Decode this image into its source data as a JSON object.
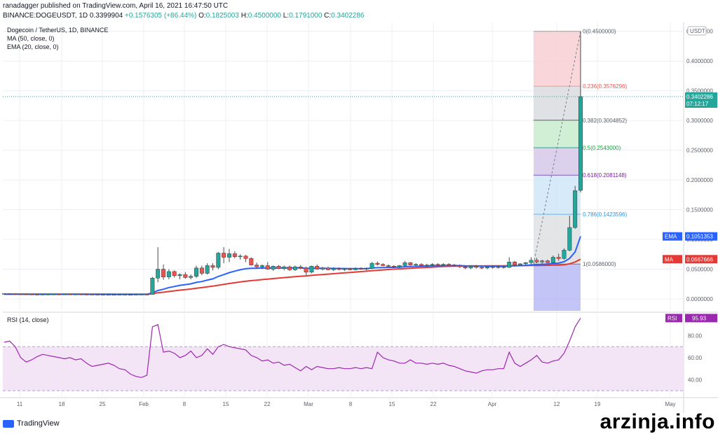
{
  "header": {
    "line1": "ranadagger published on TradingView.com, April 16, 2021 16:47:50 UTC",
    "symbol": "BINANCE:DOGEUSDT, 1D",
    "last": "0.3399904",
    "change": "+0.1576305 (+86.44%)",
    "o_label": "O:",
    "o": "0.1825003",
    "h_label": "H:",
    "h": "0.4500000",
    "l_label": "L:",
    "l": "0.1791000",
    "c_label": "C:",
    "c": "0.3402286"
  },
  "legend": {
    "title": "Dogecoin / TetherUS, 1D, BINANCE",
    "ma": "MA (50, close, 0)",
    "ema": "EMA (20, close, 0)",
    "rsi": "RSI (14, close)"
  },
  "colors": {
    "up": "#26a69a",
    "down": "#ef5350",
    "ema": "#2962ff",
    "ma": "#e53935",
    "rsi": "#9c27b0",
    "rsi_band": "#f3e5f5",
    "axis_text": "#5d606b",
    "grid": "#eceff3"
  },
  "chart_data": [
    {
      "type": "candlestick",
      "title": "Dogecoin / TetherUS, 1D, BINANCE",
      "ylabel": "USDT",
      "ylim": [
        -0.02,
        0.465
      ],
      "y_ticks": [
        "0.4500000",
        "0.4000000",
        "0.3500000",
        "0.3000000",
        "0.2500000",
        "0.2000000",
        "0.1500000",
        "0.1000000",
        "0.0500000",
        "0.0000000"
      ],
      "x_ticks": [
        "11",
        "18",
        "25",
        "Feb",
        "8",
        "15",
        "22",
        "Mar",
        "8",
        "15",
        "22",
        "Apr",
        "12",
        "19",
        "May"
      ],
      "candles": [
        [
          0.0085,
          0.0092,
          0.008,
          0.0089
        ],
        [
          0.0089,
          0.0095,
          0.0082,
          0.0087
        ],
        [
          0.0087,
          0.009,
          0.0079,
          0.0084
        ],
        [
          0.0084,
          0.0088,
          0.0078,
          0.0082
        ],
        [
          0.0082,
          0.0086,
          0.0077,
          0.008
        ],
        [
          0.008,
          0.0083,
          0.0075,
          0.0077
        ],
        [
          0.0077,
          0.0081,
          0.0074,
          0.0076
        ],
        [
          0.0076,
          0.008,
          0.0073,
          0.0078
        ],
        [
          0.0078,
          0.0082,
          0.0075,
          0.0079
        ],
        [
          0.0079,
          0.0083,
          0.0076,
          0.008
        ],
        [
          0.008,
          0.0084,
          0.0077,
          0.0078
        ],
        [
          0.0078,
          0.0082,
          0.0076,
          0.0081
        ],
        [
          0.0081,
          0.0085,
          0.0078,
          0.0079
        ],
        [
          0.0079,
          0.0083,
          0.0076,
          0.008
        ],
        [
          0.008,
          0.0083,
          0.0077,
          0.0078
        ],
        [
          0.0078,
          0.0081,
          0.0075,
          0.0077
        ],
        [
          0.0077,
          0.008,
          0.0074,
          0.0076
        ],
        [
          0.0076,
          0.0079,
          0.0073,
          0.0075
        ],
        [
          0.0075,
          0.0078,
          0.0072,
          0.0074
        ],
        [
          0.0074,
          0.0077,
          0.0071,
          0.0073
        ],
        [
          0.0073,
          0.0076,
          0.007,
          0.0074
        ],
        [
          0.0074,
          0.0077,
          0.0071,
          0.0075
        ],
        [
          0.0075,
          0.0078,
          0.0072,
          0.0073
        ],
        [
          0.0073,
          0.0076,
          0.007,
          0.0074
        ],
        [
          0.0074,
          0.0078,
          0.0072,
          0.0076
        ],
        [
          0.0076,
          0.008,
          0.0073,
          0.0077
        ],
        [
          0.0077,
          0.0081,
          0.0074,
          0.0075
        ],
        [
          0.0075,
          0.037,
          0.0072,
          0.035
        ],
        [
          0.035,
          0.087,
          0.028,
          0.05
        ],
        [
          0.05,
          0.058,
          0.032,
          0.037
        ],
        [
          0.037,
          0.05,
          0.033,
          0.046
        ],
        [
          0.046,
          0.048,
          0.036,
          0.039
        ],
        [
          0.039,
          0.043,
          0.033,
          0.041
        ],
        [
          0.041,
          0.045,
          0.034,
          0.036
        ],
        [
          0.036,
          0.041,
          0.033,
          0.038
        ],
        [
          0.038,
          0.056,
          0.035,
          0.052
        ],
        [
          0.052,
          0.056,
          0.04,
          0.043
        ],
        [
          0.043,
          0.06,
          0.041,
          0.056
        ],
        [
          0.056,
          0.06,
          0.048,
          0.053
        ],
        [
          0.053,
          0.079,
          0.05,
          0.077
        ],
        [
          0.077,
          0.087,
          0.06,
          0.07
        ],
        [
          0.07,
          0.084,
          0.062,
          0.076
        ],
        [
          0.076,
          0.08,
          0.068,
          0.071
        ],
        [
          0.071,
          0.075,
          0.066,
          0.072
        ],
        [
          0.072,
          0.074,
          0.062,
          0.068
        ],
        [
          0.068,
          0.07,
          0.056,
          0.057
        ],
        [
          0.057,
          0.061,
          0.052,
          0.054
        ],
        [
          0.054,
          0.058,
          0.05,
          0.056
        ],
        [
          0.056,
          0.062,
          0.049,
          0.05
        ],
        [
          0.05,
          0.056,
          0.047,
          0.055
        ],
        [
          0.055,
          0.057,
          0.05,
          0.051
        ],
        [
          0.051,
          0.056,
          0.048,
          0.054
        ],
        [
          0.054,
          0.056,
          0.047,
          0.049
        ],
        [
          0.049,
          0.056,
          0.047,
          0.054
        ],
        [
          0.054,
          0.057,
          0.05,
          0.052
        ],
        [
          0.052,
          0.054,
          0.04,
          0.045
        ],
        [
          0.045,
          0.056,
          0.043,
          0.055
        ],
        [
          0.055,
          0.058,
          0.049,
          0.05
        ],
        [
          0.05,
          0.054,
          0.048,
          0.052
        ],
        [
          0.052,
          0.054,
          0.048,
          0.049
        ],
        [
          0.049,
          0.053,
          0.047,
          0.051
        ],
        [
          0.051,
          0.053,
          0.048,
          0.0495
        ],
        [
          0.0495,
          0.052,
          0.047,
          0.0505
        ],
        [
          0.0505,
          0.052,
          0.048,
          0.049
        ],
        [
          0.049,
          0.053,
          0.048,
          0.051
        ],
        [
          0.051,
          0.053,
          0.049,
          0.05
        ],
        [
          0.05,
          0.053,
          0.048,
          0.0515
        ],
        [
          0.0515,
          0.062,
          0.05,
          0.06
        ],
        [
          0.06,
          0.063,
          0.056,
          0.058
        ],
        [
          0.058,
          0.06,
          0.055,
          0.056
        ],
        [
          0.056,
          0.058,
          0.053,
          0.055
        ],
        [
          0.055,
          0.057,
          0.052,
          0.054
        ],
        [
          0.054,
          0.057,
          0.052,
          0.056
        ],
        [
          0.056,
          0.064,
          0.054,
          0.061
        ],
        [
          0.061,
          0.062,
          0.056,
          0.057
        ],
        [
          0.057,
          0.06,
          0.055,
          0.058
        ],
        [
          0.058,
          0.06,
          0.055,
          0.056
        ],
        [
          0.056,
          0.059,
          0.054,
          0.057
        ],
        [
          0.057,
          0.06,
          0.055,
          0.058
        ],
        [
          0.058,
          0.06,
          0.056,
          0.057
        ],
        [
          0.057,
          0.06,
          0.055,
          0.058
        ],
        [
          0.058,
          0.06,
          0.056,
          0.057
        ],
        [
          0.057,
          0.059,
          0.054,
          0.056
        ],
        [
          0.056,
          0.058,
          0.052,
          0.054
        ],
        [
          0.054,
          0.056,
          0.05,
          0.052
        ],
        [
          0.052,
          0.056,
          0.05,
          0.055
        ],
        [
          0.055,
          0.057,
          0.051,
          0.053
        ],
        [
          0.053,
          0.055,
          0.05,
          0.052
        ],
        [
          0.052,
          0.055,
          0.05,
          0.054
        ],
        [
          0.054,
          0.056,
          0.051,
          0.053
        ],
        [
          0.053,
          0.056,
          0.051,
          0.054
        ],
        [
          0.054,
          0.056,
          0.051,
          0.053
        ],
        [
          0.053,
          0.07,
          0.052,
          0.062
        ],
        [
          0.062,
          0.064,
          0.055,
          0.057
        ],
        [
          0.057,
          0.06,
          0.055,
          0.059
        ],
        [
          0.059,
          0.062,
          0.056,
          0.061
        ],
        [
          0.061,
          0.07,
          0.058,
          0.065
        ],
        [
          0.065,
          0.069,
          0.06,
          0.062
        ],
        [
          0.062,
          0.066,
          0.059,
          0.064
        ],
        [
          0.064,
          0.066,
          0.06,
          0.061
        ],
        [
          0.061,
          0.073,
          0.06,
          0.07
        ],
        [
          0.07,
          0.076,
          0.064,
          0.068
        ],
        [
          0.068,
          0.085,
          0.066,
          0.082
        ],
        [
          0.082,
          0.14,
          0.08,
          0.12
        ],
        [
          0.12,
          0.19,
          0.118,
          0.182
        ],
        [
          0.1825,
          0.45,
          0.1791,
          0.3402
        ]
      ],
      "ema20": [
        0.008,
        0.008,
        0.008,
        0.008,
        0.008,
        0.0079,
        0.0079,
        0.0079,
        0.0079,
        0.0079,
        0.0079,
        0.0079,
        0.0079,
        0.0079,
        0.0079,
        0.0079,
        0.0078,
        0.0078,
        0.0078,
        0.0078,
        0.0077,
        0.0077,
        0.0077,
        0.0077,
        0.0077,
        0.0077,
        0.0077,
        0.0103,
        0.0141,
        0.0163,
        0.0191,
        0.0209,
        0.0228,
        0.024,
        0.0253,
        0.0278,
        0.0292,
        0.0317,
        0.0337,
        0.0378,
        0.0409,
        0.0442,
        0.0467,
        0.049,
        0.0508,
        0.0514,
        0.0516,
        0.052,
        0.0518,
        0.0521,
        0.052,
        0.0522,
        0.0519,
        0.0521,
        0.0521,
        0.0514,
        0.0517,
        0.0515,
        0.0515,
        0.0513,
        0.0513,
        0.0511,
        0.0511,
        0.0509,
        0.051,
        0.0509,
        0.051,
        0.0519,
        0.0525,
        0.0528,
        0.053,
        0.0531,
        0.0534,
        0.0541,
        0.0544,
        0.0548,
        0.055,
        0.0553,
        0.0556,
        0.0558,
        0.056,
        0.0561,
        0.0561,
        0.0559,
        0.0556,
        0.0555,
        0.0553,
        0.055,
        0.055,
        0.0549,
        0.0549,
        0.0548,
        0.0555,
        0.0556,
        0.0559,
        0.0564,
        0.0572,
        0.0576,
        0.0582,
        0.0585,
        0.0596,
        0.0604,
        0.0625,
        0.068,
        0.079,
        0.1051
      ],
      "ma50": [
        0.008,
        0.008,
        0.008,
        0.008,
        0.008,
        0.008,
        0.008,
        0.008,
        0.008,
        0.008,
        0.008,
        0.008,
        0.008,
        0.008,
        0.008,
        0.008,
        0.008,
        0.008,
        0.008,
        0.008,
        0.008,
        0.008,
        0.008,
        0.008,
        0.008,
        0.008,
        0.008,
        0.009,
        0.0102,
        0.0112,
        0.0125,
        0.0135,
        0.0147,
        0.0156,
        0.0166,
        0.018,
        0.019,
        0.0203,
        0.0214,
        0.023,
        0.0244,
        0.0259,
        0.0272,
        0.0285,
        0.0297,
        0.0307,
        0.0316,
        0.0325,
        0.0333,
        0.0342,
        0.035,
        0.0358,
        0.0366,
        0.0374,
        0.0382,
        0.0388,
        0.0396,
        0.0403,
        0.041,
        0.0417,
        0.0424,
        0.0431,
        0.0438,
        0.0445,
        0.0452,
        0.0459,
        0.0466,
        0.0474,
        0.0481,
        0.0488,
        0.0494,
        0.05,
        0.0505,
        0.051,
        0.0515,
        0.052,
        0.0525,
        0.053,
        0.0535,
        0.054,
        0.0545,
        0.0548,
        0.055,
        0.0552,
        0.0553,
        0.0554,
        0.0555,
        0.0555,
        0.0556,
        0.0556,
        0.0556,
        0.0556,
        0.0558,
        0.0558,
        0.0559,
        0.056,
        0.0562,
        0.0563,
        0.0564,
        0.0565,
        0.0567,
        0.0569,
        0.0575,
        0.059,
        0.062,
        0.0668
      ],
      "fib_levels": [
        {
          "ratio": "0",
          "label": "0(0.4500000)",
          "value": 0.45
        },
        {
          "ratio": "0.236",
          "label": "0.236(0.3576296)",
          "value": 0.3576296
        },
        {
          "ratio": "0.382",
          "label": "0.382(0.3004852)",
          "value": 0.3004852
        },
        {
          "ratio": "0.5",
          "label": "0.5(0.2543000)",
          "value": 0.2543
        },
        {
          "ratio": "0.618",
          "label": "0.618(0.2081148)",
          "value": 0.2081148
        },
        {
          "ratio": "0.786",
          "label": "0.786(0.1423596)",
          "value": 0.1423596
        },
        {
          "ratio": "1",
          "label": "1(0.0586000)",
          "value": 0.0586
        }
      ],
      "last_price_label": "0.3402286",
      "countdown": "07:12:17",
      "ema_label": "EMA",
      "ema_value": "0.1051353",
      "ma_label": "MA",
      "ma_value": "0.0667666"
    },
    {
      "type": "line",
      "title": "RSI (14, close)",
      "ylim": [
        25,
        100
      ],
      "y_ticks": [
        "80.00",
        "60.00",
        "40.00"
      ],
      "band": [
        30,
        70
      ],
      "rsi_label": "RSI",
      "rsi_value": "95.93",
      "values": [
        74,
        75,
        70,
        60,
        56,
        58,
        61,
        63,
        62,
        61,
        60,
        59,
        60,
        58,
        59,
        55,
        52,
        53,
        54,
        55,
        53,
        50,
        49,
        45,
        43,
        42,
        44,
        88,
        90,
        65,
        66,
        64,
        60,
        62,
        66,
        60,
        62,
        68,
        63,
        70,
        72,
        70,
        69,
        68,
        67,
        62,
        60,
        57,
        58,
        55,
        56,
        53,
        54,
        51,
        48,
        52,
        49,
        52,
        51,
        50,
        50,
        51,
        50,
        50,
        51,
        50,
        51,
        50,
        65,
        60,
        58,
        57,
        55,
        55,
        58,
        55,
        55,
        54,
        55,
        54,
        55,
        53,
        52,
        50,
        48,
        47,
        46,
        48,
        49,
        49,
        50,
        50,
        65,
        55,
        52,
        55,
        58,
        62,
        56,
        55,
        57,
        58,
        64,
        75,
        88,
        95.93
      ]
    }
  ],
  "footer": {
    "brand": "TradingView",
    "watermark": "arzinja.info"
  }
}
